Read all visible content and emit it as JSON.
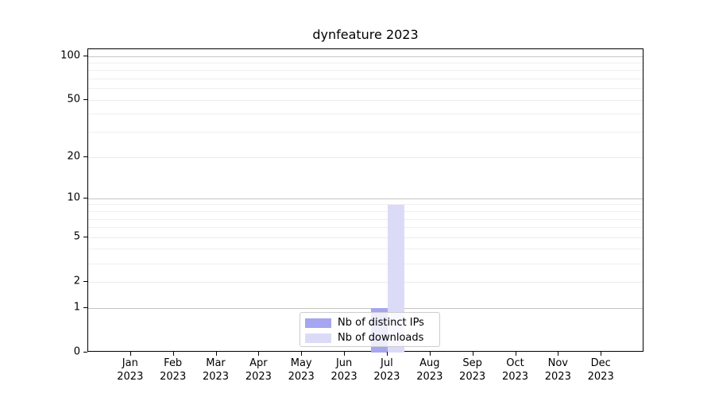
{
  "chart_data": {
    "type": "bar",
    "title": "dynfeature 2023",
    "x_tick_labels": [
      [
        "Jan",
        "2023"
      ],
      [
        "Feb",
        "2023"
      ],
      [
        "Mar",
        "2023"
      ],
      [
        "Apr",
        "2023"
      ],
      [
        "May",
        "2023"
      ],
      [
        "Jun",
        "2023"
      ],
      [
        "Jul",
        "2023"
      ],
      [
        "Aug",
        "2023"
      ],
      [
        "Sep",
        "2023"
      ],
      [
        "Oct",
        "2023"
      ],
      [
        "Nov",
        "2023"
      ],
      [
        "Dec",
        "2023"
      ]
    ],
    "series": [
      {
        "name": "Nb of distinct IPs",
        "color": "#a5a5f0",
        "values": [
          0,
          0,
          0,
          0,
          0,
          0,
          1,
          0,
          0,
          0,
          0,
          0
        ]
      },
      {
        "name": "Nb of downloads",
        "color": "#dbdbf8",
        "values": [
          0,
          0,
          0,
          0,
          0,
          0,
          9,
          0,
          0,
          0,
          0,
          0
        ]
      }
    ],
    "yscale": "log1p",
    "ylim": [
      0,
      112
    ],
    "yticks": [
      0,
      1,
      2,
      5,
      10,
      20,
      50,
      100
    ],
    "minor_yticks": [
      3,
      4,
      6,
      7,
      8,
      9,
      30,
      40,
      60,
      70,
      80,
      90
    ],
    "emphasized_gridlines": [
      1,
      10,
      100
    ],
    "grid": true,
    "legend_position": "lower center"
  }
}
